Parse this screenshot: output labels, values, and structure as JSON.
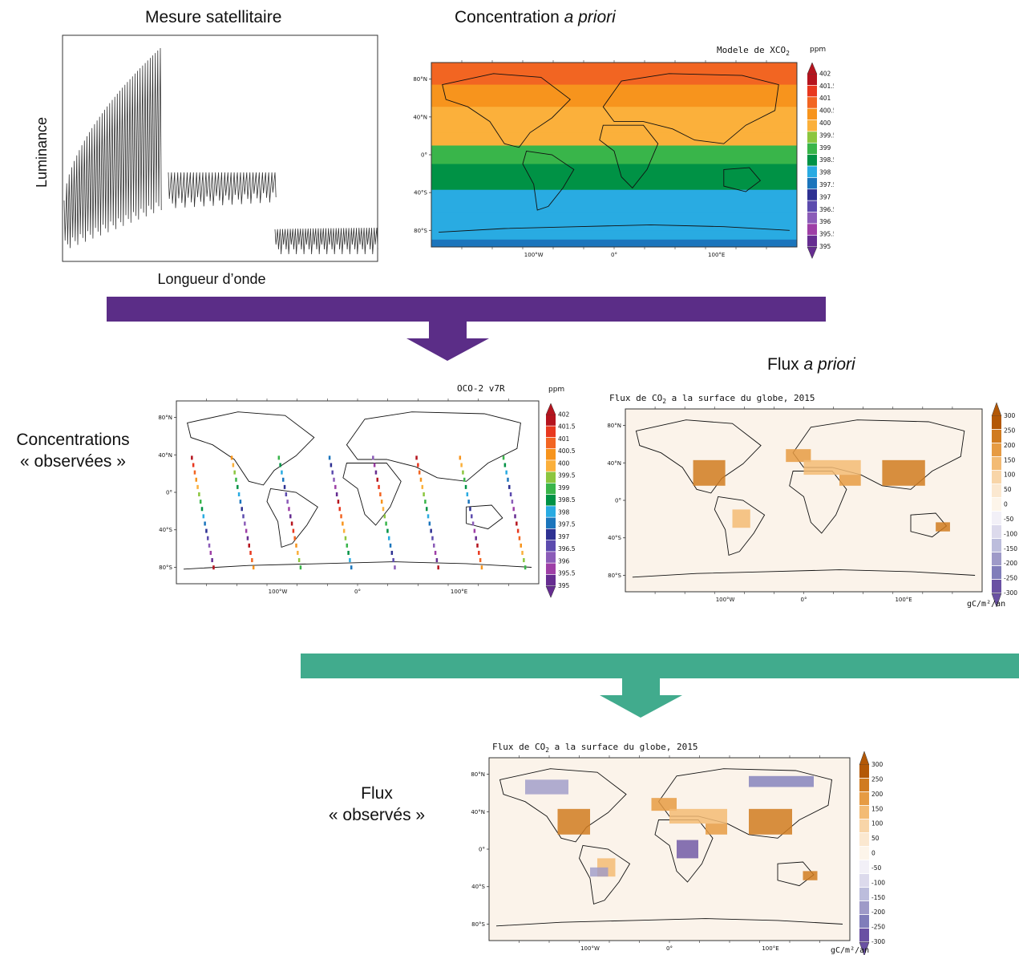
{
  "panels": {
    "satellite": {
      "heading": "Mesure satellitaire",
      "ylabel": "Luminance",
      "xlabel": "Longueur d’onde"
    },
    "prior_concentration": {
      "heading_plain": "Concentration",
      "heading_italic": "a priori",
      "map_title": "Modele de XCO",
      "map_title_sub": "2",
      "unit": "ppm",
      "colorbar_labels": [
        "402",
        "401.5",
        "401",
        "400.5",
        "400",
        "399.5",
        "399",
        "398.5",
        "398",
        "397.5",
        "397",
        "396.5",
        "396",
        "395.5",
        "395"
      ],
      "colorbar_colors": [
        "#b5141e",
        "#e8381f",
        "#f26522",
        "#f7941d",
        "#fbb03b",
        "#8cc63f",
        "#39b54a",
        "#009245",
        "#29abe2",
        "#1b75bc",
        "#2e3192",
        "#5c4bae",
        "#8b5cb8",
        "#9e3fa6",
        "#662d91"
      ]
    },
    "observed_concentration": {
      "label_line1": "Concentrations",
      "label_line2": "« observées »",
      "map_title": "OCO-2 v7R",
      "unit": "ppm"
    },
    "prior_flux": {
      "heading_plain": "Flux",
      "heading_italic": "a priori",
      "map_title": "Flux de CO",
      "map_title_sub": "2",
      "map_title_rest": " a la surface du globe, 2015",
      "unit": "gC/m²/an",
      "colorbar_labels": [
        "300",
        "250",
        "200",
        "150",
        "100",
        "50",
        "0",
        "-50",
        "-100",
        "-150",
        "-200",
        "-250",
        "-300"
      ],
      "colorbar_colors": [
        "#b35806",
        "#d07b20",
        "#e69b43",
        "#f3bb74",
        "#f8d5a8",
        "#fbe8d0",
        "#fdf5ea",
        "#f2f0f7",
        "#dcdaec",
        "#bcbddc",
        "#9e9ac8",
        "#807dba",
        "#6a51a3"
      ]
    },
    "observed_flux": {
      "label_line1": "Flux",
      "label_line2": "« observés »",
      "map_title": "Flux de CO",
      "map_title_sub": "2",
      "map_title_rest": " a la surface du globe, 2015",
      "unit": "gC/m²/an"
    }
  },
  "map_axes": {
    "lat_labels": [
      "80°N",
      "40°N",
      "0°",
      "40°S",
      "80°S"
    ],
    "lon_labels": [
      "100°W",
      "0°",
      "100°E"
    ]
  },
  "arrows": {
    "first_color": "#5b2d87",
    "second_color": "#41ab8d"
  }
}
